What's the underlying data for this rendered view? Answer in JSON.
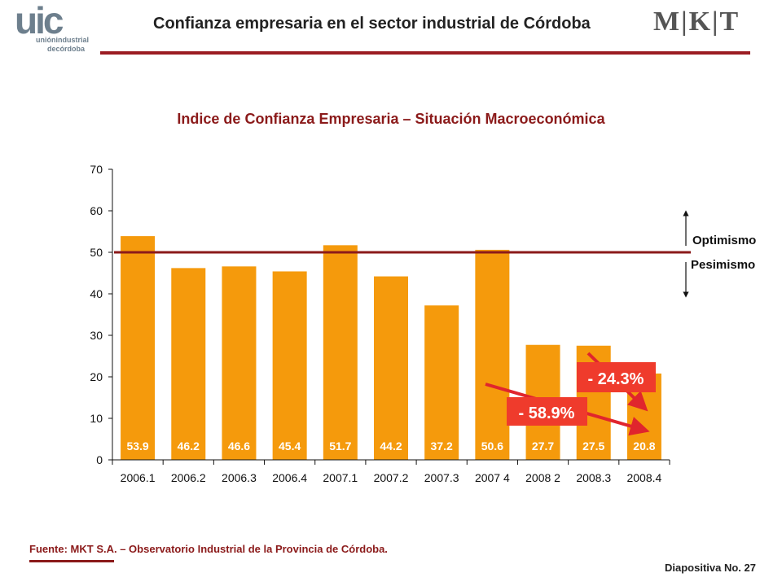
{
  "header": {
    "title": "Confianza empresaria en el sector industrial de Córdoba",
    "logo_left_big": "uic",
    "logo_left_line1": "uniónindustrial",
    "logo_left_line2": "decórdoba",
    "logo_right": "M|K|T"
  },
  "colors": {
    "bar": "#f59a0c",
    "threshold_line": "#8b1a1a",
    "callout_bg": "#ef3b2c",
    "arrow": "#e0252d",
    "title": "#8b1a1a"
  },
  "chart_data": {
    "type": "bar",
    "title": "Indice de Confianza Empresaria – Situación Macroeconómica",
    "categories": [
      "2006.1",
      "2006.2",
      "2006.3",
      "2006.4",
      "2007.1",
      "2007.2",
      "2007.3",
      "2007 4",
      "2008 2",
      "2008.3",
      "2008.4"
    ],
    "values": [
      53.9,
      46.2,
      46.6,
      45.4,
      51.7,
      44.2,
      37.2,
      50.6,
      27.7,
      27.5,
      20.8
    ],
    "value_labels": [
      "53.9",
      "46.2",
      "46.6",
      "45.4",
      "51.7",
      "44.2",
      "37.2",
      "50.6",
      "27.7",
      "27.5",
      "20.8"
    ],
    "yticks": [
      "0",
      "10",
      "20",
      "30",
      "40",
      "50",
      "60",
      "70"
    ],
    "ylim": [
      0,
      70
    ],
    "threshold": 50,
    "grid": false,
    "annotations": {
      "optimismo": "Optimismo",
      "pesimismo": "Pesimismo",
      "callout_1": "- 24.3%",
      "callout_2": "- 58.9%"
    }
  },
  "footer": {
    "source": "Fuente: MKT S.A. – Observatorio Industrial de la Provincia de Córdoba.",
    "slide_number": "Diapositiva No. 27"
  }
}
